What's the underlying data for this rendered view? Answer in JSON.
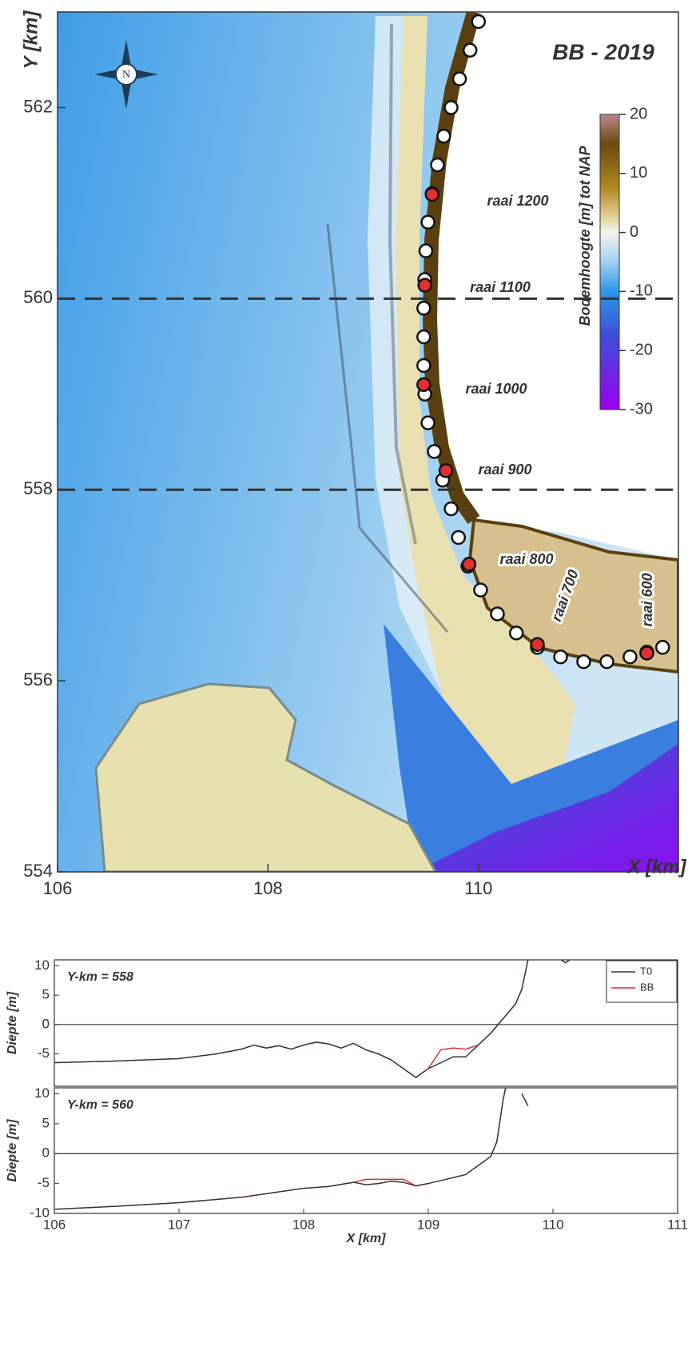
{
  "chart_data": [
    {
      "type": "scatter",
      "title": "BB - 2019",
      "xlabel": "X [km]",
      "ylabel": "Y [km]",
      "xlim": [
        106,
        111.9
      ],
      "ylim": [
        554,
        563
      ],
      "xticks": [
        106,
        108,
        110
      ],
      "yticks": [
        554,
        556,
        558,
        560,
        562
      ],
      "hlines": [
        558,
        560
      ],
      "compass": "N",
      "annotations": [
        "raai 1200",
        "raai 1100",
        "raai 1000",
        "raai 900",
        "raai 800",
        "raai 700",
        "raai 600"
      ],
      "colorbar": {
        "label": "Bodemhoogte  [m] tot NAP",
        "lim": [
          -30,
          20
        ],
        "ticks": [
          -30,
          -20,
          -10,
          0,
          10,
          20
        ]
      },
      "series": [
        {
          "color": "#ffffff",
          "x": [
            110.0,
            109.92,
            109.82,
            109.74,
            109.67,
            109.61,
            109.56,
            109.52,
            109.5,
            109.49,
            109.48,
            109.48,
            109.48,
            109.49,
            109.52,
            109.58,
            109.66,
            109.74,
            109.81,
            109.9,
            110.02,
            110.18,
            110.36,
            110.56,
            110.78,
            111.0,
            111.22,
            111.44,
            111.6,
            111.75
          ],
          "y": [
            562.9,
            562.6,
            562.3,
            562.0,
            561.7,
            561.4,
            561.1,
            560.8,
            560.5,
            560.2,
            559.9,
            559.6,
            559.3,
            559.0,
            558.7,
            558.4,
            558.1,
            557.8,
            557.5,
            557.2,
            556.95,
            556.7,
            556.5,
            556.35,
            556.25,
            556.2,
            556.2,
            556.25,
            556.3,
            556.35
          ]
        },
        {
          "color": "#e03030",
          "x": [
            109.56,
            109.49,
            109.48,
            109.69,
            109.91,
            110.56,
            111.6
          ],
          "y": [
            561.09,
            560.14,
            559.1,
            558.2,
            557.22,
            556.38,
            556.29
          ]
        }
      ]
    },
    {
      "type": "line",
      "title": "Y-km = 558",
      "ylabel": "Diepte [m]",
      "xlim": [
        106,
        111
      ],
      "ylim": [
        -10.5,
        11
      ],
      "yticks": [
        -5,
        0,
        5,
        10
      ],
      "hlines": [
        0
      ],
      "legend": "upper right",
      "x": [
        106,
        106.5,
        107,
        107.3,
        107.5,
        107.6,
        107.7,
        107.8,
        107.9,
        108,
        108.1,
        108.2,
        108.3,
        108.4,
        108.5,
        108.6,
        108.7,
        108.8,
        108.9,
        109,
        109.1,
        109.2,
        109.3,
        109.4,
        109.5,
        109.6,
        109.7,
        109.75,
        109.8,
        109.9,
        110,
        110.1,
        110.2
      ],
      "series": [
        {
          "name": "T0",
          "color": "#333333",
          "values": [
            -6.5,
            -6.2,
            -5.8,
            -5.0,
            -4.2,
            -3.5,
            -4.0,
            -3.6,
            -4.2,
            -3.5,
            -3.0,
            -3.3,
            -4.0,
            -3.2,
            -4.3,
            -5.0,
            -6.0,
            -7.5,
            -9.0,
            -7.5,
            -6.5,
            -5.5,
            -5.5,
            -3.5,
            -1.5,
            1.0,
            3.5,
            6,
            11,
            14,
            12,
            10.5,
            12
          ]
        },
        {
          "name": "BB",
          "color": "#d62728",
          "values": [
            -6.5,
            -6.2,
            -5.8,
            -5.0,
            -4.2,
            -3.5,
            -4.0,
            -3.6,
            -4.2,
            -3.5,
            -3.0,
            -3.3,
            -4.0,
            -3.2,
            -4.3,
            -5.0,
            -6.0,
            -7.5,
            -9.0,
            -7.5,
            -4.3,
            -4.0,
            -4.2,
            -3.5,
            -1.5,
            1.0,
            3.5,
            6,
            11,
            14,
            12,
            10.5,
            12
          ]
        }
      ]
    },
    {
      "type": "line",
      "title": "Y-km = 560",
      "ylabel": "Diepte [m]",
      "xlabel": "X [km]",
      "xlim": [
        106,
        111
      ],
      "ylim": [
        -10,
        11
      ],
      "xticks": [
        106,
        107,
        108,
        109,
        110,
        111
      ],
      "yticks": [
        -10,
        -5,
        0,
        5,
        10
      ],
      "hlines": [
        0
      ],
      "x": [
        106,
        106.5,
        107,
        107.5,
        108,
        108.2,
        108.4,
        108.5,
        108.6,
        108.7,
        108.8,
        108.9,
        109,
        109.1,
        109.2,
        109.3,
        109.4,
        109.5,
        109.55,
        109.6,
        109.65,
        109.7,
        109.75,
        109.8
      ],
      "series": [
        {
          "name": "T0",
          "color": "#333333",
          "values": [
            -9.3,
            -8.8,
            -8.2,
            -7.3,
            -5.8,
            -5.5,
            -4.8,
            -5.2,
            -5.0,
            -4.6,
            -4.8,
            -5.4,
            -5.0,
            -4.5,
            -4.0,
            -3.5,
            -2.0,
            -0.5,
            2,
            9,
            14,
            null,
            10,
            8
          ]
        },
        {
          "name": "BB",
          "color": "#d62728",
          "values": [
            -9.3,
            -8.8,
            -8.2,
            -7.3,
            -5.8,
            -5.5,
            -4.8,
            -4.3,
            -4.3,
            -4.3,
            -4.3,
            -5.4,
            -5.0,
            -4.5,
            -4.0,
            -3.5,
            -2.0,
            -0.5,
            2,
            9,
            14,
            null,
            10,
            8
          ]
        }
      ]
    }
  ]
}
